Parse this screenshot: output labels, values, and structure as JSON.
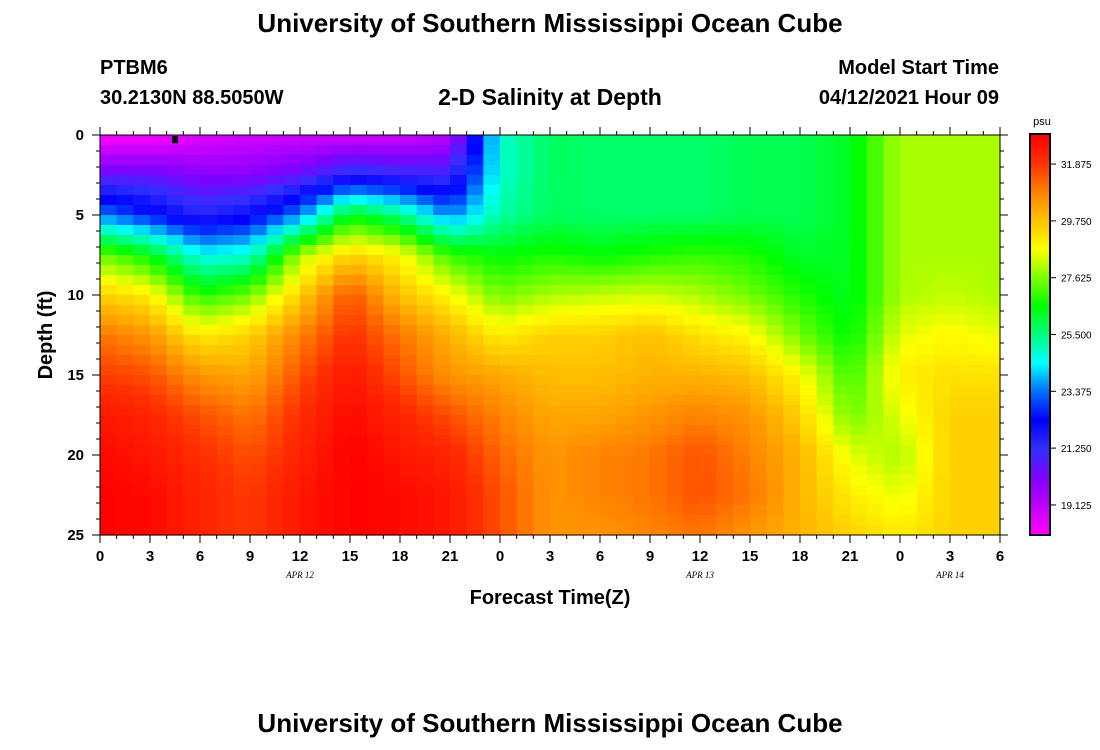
{
  "header": {
    "title": "University of Southern Mississippi Ocean Cube",
    "station": "PTBM6",
    "coords": "30.2130N  88.5050W",
    "chart_title": "2-D Salinity at Depth",
    "model_start_label": "Model Start Time",
    "model_start_value": "04/12/2021 Hour 09"
  },
  "footer": {
    "title": "University of Southern Mississippi Ocean Cube"
  },
  "colors": {
    "scale": [
      "#ff00ff",
      "#c000ff",
      "#8000ff",
      "#3030ff",
      "#0000ff",
      "#0070ff",
      "#00ffff",
      "#00ff80",
      "#00ff00",
      "#80ff00",
      "#ffff00",
      "#ffc000",
      "#ff8000",
      "#ff3000",
      "#ff0000"
    ]
  },
  "chart_data": {
    "type": "heatmap",
    "title": "2-D Salinity at Depth",
    "xlabel": "Forecast Time(Z)",
    "ylabel": "Depth (ft)",
    "units": "psu",
    "x_hours_range": [
      0,
      54
    ],
    "x_tick_hours": [
      0,
      3,
      6,
      9,
      12,
      15,
      18,
      21,
      24,
      27,
      30,
      33,
      36,
      39,
      42,
      45,
      48,
      51,
      54
    ],
    "x_tick_labels": [
      "0",
      "3",
      "6",
      "9",
      "12",
      "15",
      "18",
      "21",
      "0",
      "3",
      "6",
      "9",
      "12",
      "15",
      "18",
      "21",
      "0",
      "3",
      "6"
    ],
    "date_labels": [
      {
        "hour": 12,
        "label": "APR  12"
      },
      {
        "hour": 36,
        "label": "APR  13"
      },
      {
        "hour": 51,
        "label": "APR  14"
      }
    ],
    "y_range": [
      0,
      25
    ],
    "y_ticks": [
      0,
      5,
      10,
      15,
      20,
      25
    ],
    "y_tick_labels": [
      "0",
      "5",
      "10",
      "15",
      "20",
      "25"
    ],
    "colorbar_range": [
      18.0,
      33.0
    ],
    "colorbar_ticks": [
      19.125,
      21.25,
      23.375,
      25.5,
      27.625,
      29.75,
      31.875
    ],
    "colorbar_labels": [
      "19.125",
      "21.250",
      "23.375",
      "25.500",
      "27.625",
      "29.750",
      "31.875"
    ],
    "marker": {
      "hour": 4.5,
      "depth": 0.2
    },
    "grid": {
      "hours": [
        0,
        3,
        6,
        9,
        12,
        15,
        18,
        21,
        24,
        27,
        30,
        33,
        36,
        39,
        42,
        45,
        48,
        51,
        54
      ],
      "depths": [
        0,
        2.5,
        5,
        7.5,
        10,
        12.5,
        15,
        17.5,
        20,
        22.5,
        25
      ],
      "values": [
        [
          18.0,
          18.0,
          18.5,
          18.8,
          18.8,
          18.8,
          18.8,
          19.2,
          24.8,
          25.8,
          25.7,
          25.7,
          25.7,
          25.9,
          25.9,
          26.3,
          28.0,
          28.0,
          28.0
        ],
        [
          20.5,
          20.5,
          20.0,
          20.0,
          20.5,
          21.5,
          21.2,
          21.0,
          24.8,
          25.8,
          25.7,
          25.7,
          25.7,
          25.9,
          25.9,
          26.3,
          28.0,
          28.0,
          28.0
        ],
        [
          23.5,
          22.5,
          21.5,
          22.0,
          23.5,
          26.5,
          25.5,
          23.5,
          25.2,
          25.8,
          25.7,
          25.7,
          25.7,
          25.9,
          25.9,
          26.3,
          28.0,
          28.0,
          28.0
        ],
        [
          27.5,
          26.5,
          24.5,
          24.8,
          28.0,
          29.5,
          28.8,
          27.0,
          26.5,
          26.8,
          26.5,
          26.8,
          27.0,
          26.8,
          26.2,
          26.3,
          28.0,
          28.0,
          28.0
        ],
        [
          29.5,
          29.0,
          26.8,
          27.5,
          29.5,
          31.5,
          29.8,
          28.8,
          27.5,
          28.0,
          28.2,
          28.3,
          28.0,
          27.5,
          26.8,
          26.3,
          28.0,
          28.2,
          28.0
        ],
        [
          31.0,
          30.5,
          29.0,
          29.5,
          30.8,
          32.0,
          31.0,
          30.0,
          29.0,
          29.5,
          29.5,
          29.8,
          29.2,
          28.8,
          27.5,
          26.5,
          28.5,
          28.8,
          28.5
        ],
        [
          31.8,
          31.5,
          30.5,
          30.2,
          31.5,
          32.5,
          31.5,
          30.5,
          30.2,
          29.8,
          29.8,
          30.0,
          30.0,
          29.8,
          28.8,
          27.0,
          29.0,
          29.2,
          29.2
        ],
        [
          32.5,
          32.2,
          31.5,
          31.0,
          32.0,
          32.8,
          32.2,
          31.5,
          30.8,
          30.2,
          30.2,
          30.5,
          30.8,
          30.5,
          29.5,
          27.5,
          28.5,
          29.5,
          29.5
        ],
        [
          32.8,
          32.5,
          32.0,
          31.5,
          32.2,
          33.0,
          32.5,
          32.2,
          31.2,
          30.5,
          30.8,
          31.0,
          31.5,
          30.8,
          30.0,
          28.5,
          28.0,
          29.5,
          29.5
        ],
        [
          33.0,
          32.8,
          32.2,
          31.8,
          32.5,
          33.0,
          32.8,
          32.5,
          31.5,
          30.5,
          30.8,
          31.0,
          31.5,
          31.0,
          30.0,
          29.0,
          28.5,
          29.5,
          29.5
        ],
        [
          33.0,
          32.8,
          32.2,
          31.8,
          32.5,
          33.0,
          32.8,
          32.5,
          31.5,
          30.5,
          30.5,
          30.8,
          31.0,
          30.5,
          30.0,
          29.5,
          29.0,
          29.5,
          29.5
        ]
      ]
    }
  }
}
